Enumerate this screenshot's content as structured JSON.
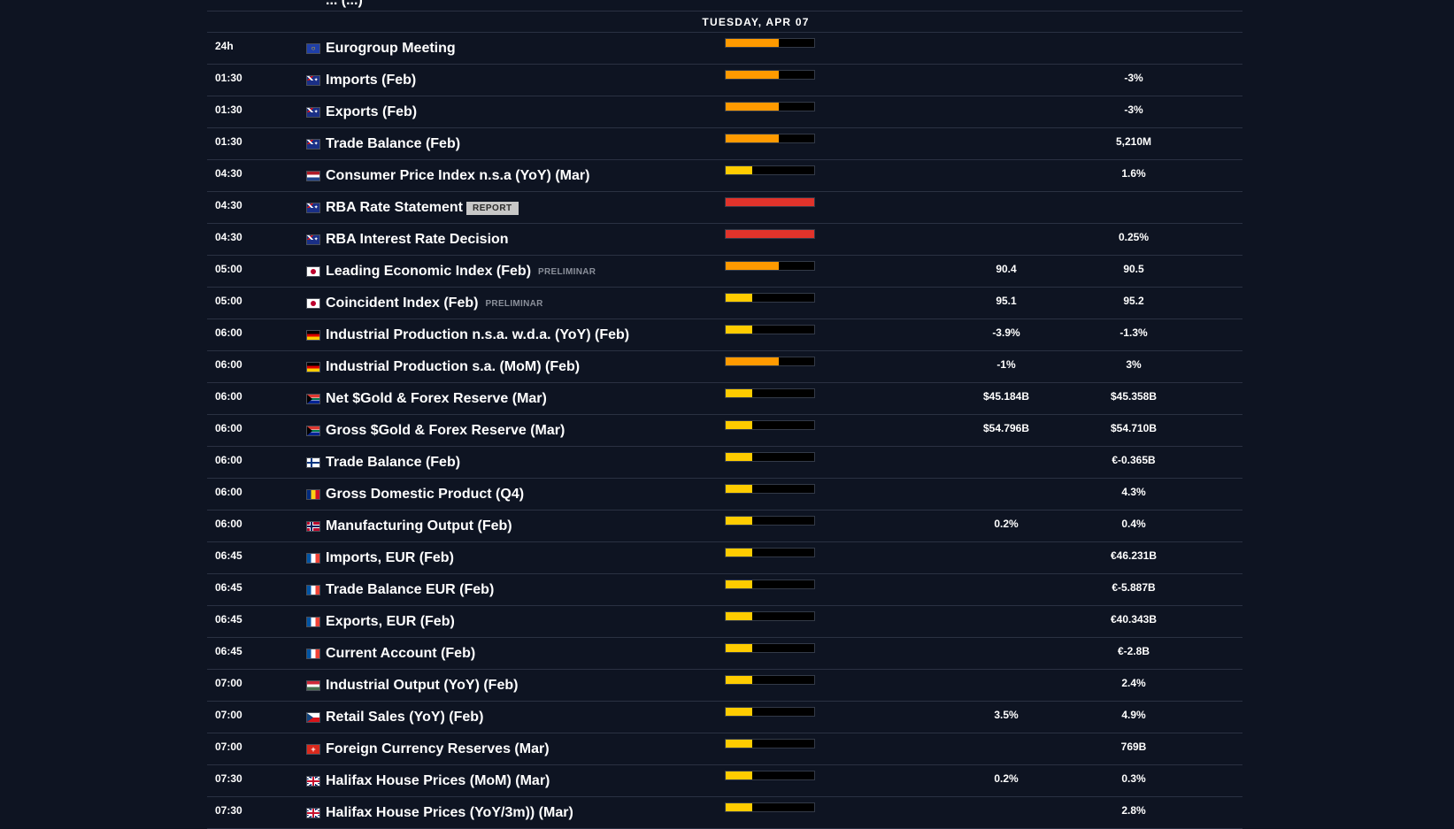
{
  "day_header": "TUESDAY, APR 07",
  "previous_row_partial": "... (...)",
  "importance_colors": {
    "high": "#e0332b",
    "medium": "#ff9a00",
    "low": "#ffcc00",
    "empty": "#000000"
  },
  "events": [
    {
      "time": "24h",
      "country": "eu",
      "title": "Eurogroup Meeting",
      "importance": 0.6,
      "level": "medium",
      "forecast": "",
      "previous": ""
    },
    {
      "time": "01:30",
      "country": "au",
      "title": "Imports (Feb)",
      "importance": 0.6,
      "level": "medium",
      "forecast": "",
      "previous": "-3%"
    },
    {
      "time": "01:30",
      "country": "au",
      "title": "Exports (Feb)",
      "importance": 0.6,
      "level": "medium",
      "forecast": "",
      "previous": "-3%"
    },
    {
      "time": "01:30",
      "country": "au",
      "title": "Trade Balance (Feb)",
      "importance": 0.6,
      "level": "medium",
      "forecast": "",
      "previous": "5,210M"
    },
    {
      "time": "04:30",
      "country": "nl",
      "title": "Consumer Price Index n.s.a (YoY) (Mar)",
      "importance": 0.3,
      "level": "low",
      "forecast": "",
      "previous": "1.6%"
    },
    {
      "time": "04:30",
      "country": "au",
      "title": "RBA Rate Statement",
      "badge": "REPORT",
      "importance": 1.0,
      "level": "high",
      "forecast": "",
      "previous": ""
    },
    {
      "time": "04:30",
      "country": "au",
      "title": "RBA Interest Rate Decision",
      "importance": 1.0,
      "level": "high",
      "forecast": "",
      "previous": "0.25%"
    },
    {
      "time": "05:00",
      "country": "jp",
      "title": "Leading Economic Index (Feb)",
      "tag": "PRELIMINAR",
      "importance": 0.6,
      "level": "medium",
      "forecast": "90.4",
      "previous": "90.5"
    },
    {
      "time": "05:00",
      "country": "jp",
      "title": "Coincident Index (Feb)",
      "tag": "PRELIMINAR",
      "importance": 0.3,
      "level": "low",
      "forecast": "95.1",
      "previous": "95.2"
    },
    {
      "time": "06:00",
      "country": "de",
      "title": "Industrial Production n.s.a. w.d.a. (YoY) (Feb)",
      "importance": 0.3,
      "level": "low",
      "forecast": "-3.9%",
      "previous": "-1.3%"
    },
    {
      "time": "06:00",
      "country": "de",
      "title": "Industrial Production s.a. (MoM) (Feb)",
      "importance": 0.6,
      "level": "medium",
      "forecast": "-1%",
      "previous": "3%"
    },
    {
      "time": "06:00",
      "country": "za",
      "title": "Net $Gold & Forex Reserve (Mar)",
      "importance": 0.3,
      "level": "low",
      "forecast": "$45.184B",
      "previous": "$45.358B"
    },
    {
      "time": "06:00",
      "country": "za",
      "title": "Gross $Gold & Forex Reserve (Mar)",
      "importance": 0.3,
      "level": "low",
      "forecast": "$54.796B",
      "previous": "$54.710B"
    },
    {
      "time": "06:00",
      "country": "fi",
      "title": "Trade Balance (Feb)",
      "importance": 0.3,
      "level": "low",
      "forecast": "",
      "previous": "€-0.365B"
    },
    {
      "time": "06:00",
      "country": "ro",
      "title": "Gross Domestic Product (Q4)",
      "importance": 0.3,
      "level": "low",
      "forecast": "",
      "previous": "4.3%"
    },
    {
      "time": "06:00",
      "country": "no",
      "title": "Manufacturing Output (Feb)",
      "importance": 0.3,
      "level": "low",
      "forecast": "0.2%",
      "previous": "0.4%"
    },
    {
      "time": "06:45",
      "country": "fr",
      "title": "Imports, EUR (Feb)",
      "importance": 0.3,
      "level": "low",
      "forecast": "",
      "previous": "€46.231B"
    },
    {
      "time": "06:45",
      "country": "fr",
      "title": "Trade Balance EUR (Feb)",
      "importance": 0.3,
      "level": "low",
      "forecast": "",
      "previous": "€-5.887B"
    },
    {
      "time": "06:45",
      "country": "fr",
      "title": "Exports, EUR (Feb)",
      "importance": 0.3,
      "level": "low",
      "forecast": "",
      "previous": "€40.343B"
    },
    {
      "time": "06:45",
      "country": "fr",
      "title": "Current Account (Feb)",
      "importance": 0.3,
      "level": "low",
      "forecast": "",
      "previous": "€-2.8B"
    },
    {
      "time": "07:00",
      "country": "hu",
      "title": "Industrial Output (YoY) (Feb)",
      "importance": 0.3,
      "level": "low",
      "forecast": "",
      "previous": "2.4%"
    },
    {
      "time": "07:00",
      "country": "cz",
      "title": "Retail Sales (YoY) (Feb)",
      "importance": 0.3,
      "level": "low",
      "forecast": "3.5%",
      "previous": "4.9%"
    },
    {
      "time": "07:00",
      "country": "ch",
      "title": "Foreign Currency Reserves (Mar)",
      "importance": 0.3,
      "level": "low",
      "forecast": "",
      "previous": "769B"
    },
    {
      "time": "07:30",
      "country": "gb",
      "title": "Halifax House Prices (MoM) (Mar)",
      "importance": 0.3,
      "level": "low",
      "forecast": "0.2%",
      "previous": "0.3%"
    },
    {
      "time": "07:30",
      "country": "gb",
      "title": "Halifax House Prices (YoY/3m)) (Mar)",
      "importance": 0.3,
      "level": "low",
      "forecast": "",
      "previous": "2.8%"
    }
  ]
}
